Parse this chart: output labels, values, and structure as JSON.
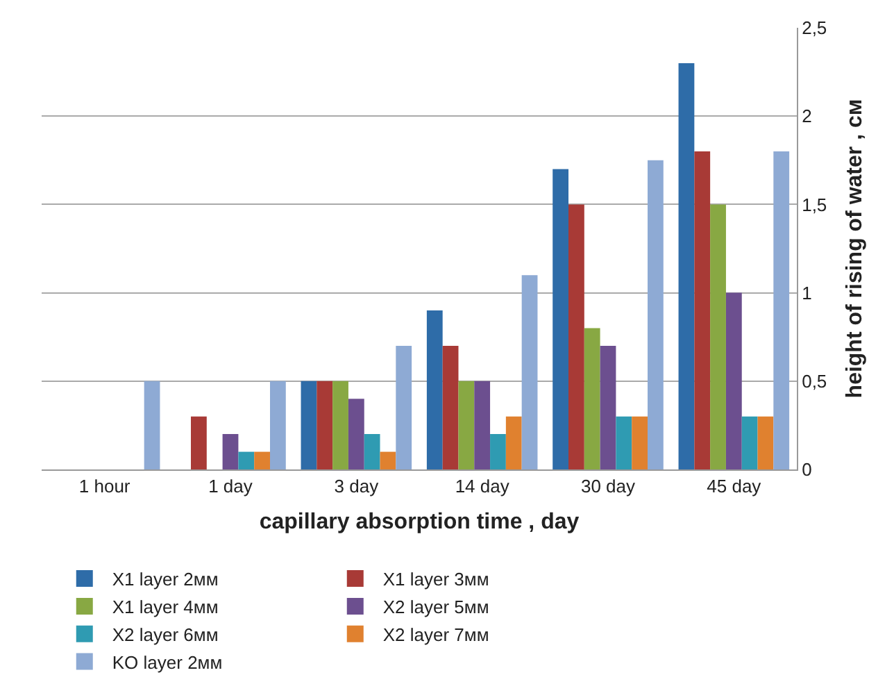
{
  "chart_data": {
    "type": "bar",
    "xlabel": "capillary absorption time , day",
    "ylabel": "height of rising of water , см",
    "categories": [
      "1 hour",
      "1 day",
      "3 day",
      "14 day",
      "30 day",
      "45 day"
    ],
    "series": [
      {
        "name": "X1 layer 2мм",
        "color": "#2e6ca8",
        "values": [
          0,
          0,
          0.5,
          0.9,
          1.7,
          2.3
        ]
      },
      {
        "name": "X1 layer 3мм",
        "color": "#a83a36",
        "values": [
          0,
          0.3,
          0.5,
          0.7,
          1.5,
          1.8
        ]
      },
      {
        "name": "X1 layer 4мм",
        "color": "#88a843",
        "values": [
          0,
          0,
          0.5,
          0.5,
          0.8,
          1.5
        ]
      },
      {
        "name": "X2 layer 5мм",
        "color": "#6c4f8f",
        "values": [
          0,
          0.2,
          0.4,
          0.5,
          0.7,
          1.0
        ]
      },
      {
        "name": "X2 layer 6мм",
        "color": "#2f9bb2",
        "values": [
          0,
          0.1,
          0.2,
          0.2,
          0.3,
          0.3
        ]
      },
      {
        "name": "X2 layer 7мм",
        "color": "#e0812f",
        "values": [
          0,
          0.1,
          0.1,
          0.3,
          0.3,
          0.3
        ]
      },
      {
        "name": "KO layer 2мм",
        "color": "#8eaad4",
        "values": [
          0.5,
          0.5,
          0.7,
          1.1,
          1.75,
          1.8
        ]
      }
    ],
    "ylim": [
      0,
      2.5
    ],
    "yticks": [
      0,
      {
        "value": 0.5,
        "label": "0,5"
      },
      1,
      {
        "value": 1.5,
        "label": "1,5"
      },
      2,
      {
        "value": 2.5,
        "label": "2,5"
      }
    ],
    "grid": "y",
    "legend": "bottom"
  }
}
